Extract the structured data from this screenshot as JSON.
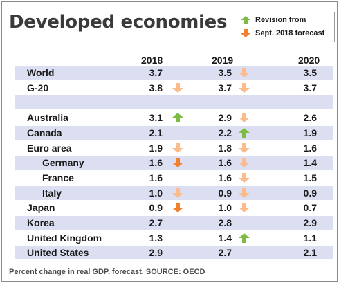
{
  "title": "Developed economies",
  "legend": {
    "up_label": "Revision from",
    "down_label": "Sept. 2018 forecast"
  },
  "colors": {
    "shade": "#dcdff1",
    "arrow_up": "#7dbb42",
    "arrow_down_strong": "#f07f2e",
    "arrow_down_light": "#fbbb8b"
  },
  "chart_data": {
    "type": "table",
    "columns": [
      "2018",
      "2019",
      "2020"
    ],
    "rows": [
      {
        "name": "World",
        "values": [
          "3.7",
          "3.5",
          "3.5"
        ],
        "revisions": [
          null,
          "down-light",
          null
        ],
        "indent": 0,
        "shaded": true
      },
      {
        "name": "G-20",
        "values": [
          "3.8",
          "3.7",
          "3.7"
        ],
        "revisions": [
          "down-light",
          "down-light",
          null
        ],
        "indent": 0,
        "shaded": false
      },
      {
        "name": "",
        "values": [
          "",
          "",
          ""
        ],
        "revisions": [
          null,
          null,
          null
        ],
        "indent": 0,
        "shaded": true
      },
      {
        "name": "Australia",
        "values": [
          "3.1",
          "2.9",
          "2.6"
        ],
        "revisions": [
          "up",
          "down-light",
          null
        ],
        "indent": 0,
        "shaded": false
      },
      {
        "name": "Canada",
        "values": [
          "2.1",
          "2.2",
          "1.9"
        ],
        "revisions": [
          null,
          "up",
          null
        ],
        "indent": 0,
        "shaded": true
      },
      {
        "name": "Euro area",
        "values": [
          "1.9",
          "1.8",
          "1.6"
        ],
        "revisions": [
          "down-light",
          "down-light",
          null
        ],
        "indent": 0,
        "shaded": false
      },
      {
        "name": "Germany",
        "values": [
          "1.6",
          "1.6",
          "1.4"
        ],
        "revisions": [
          "down-strong",
          "down-light",
          null
        ],
        "indent": 1,
        "shaded": true
      },
      {
        "name": "France",
        "values": [
          "1.6",
          "1.6",
          "1.5"
        ],
        "revisions": [
          null,
          "down-light",
          null
        ],
        "indent": 1,
        "shaded": false
      },
      {
        "name": "Italy",
        "values": [
          "1.0",
          "0.9",
          "0.9"
        ],
        "revisions": [
          "down-light",
          "down-light",
          null
        ],
        "indent": 1,
        "shaded": true
      },
      {
        "name": "Japan",
        "values": [
          "0.9",
          "1.0",
          "0.7"
        ],
        "revisions": [
          "down-strong",
          "down-light",
          null
        ],
        "indent": 0,
        "shaded": false
      },
      {
        "name": "Korea",
        "values": [
          "2.7",
          "2.8",
          "2.9"
        ],
        "revisions": [
          null,
          null,
          null
        ],
        "indent": 0,
        "shaded": true
      },
      {
        "name": "United Kingdom",
        "values": [
          "1.3",
          "1.4",
          "1.1"
        ],
        "revisions": [
          null,
          "up",
          null
        ],
        "indent": 0,
        "shaded": false
      },
      {
        "name": "United States",
        "values": [
          "2.9",
          "2.7",
          "2.1"
        ],
        "revisions": [
          null,
          null,
          null
        ],
        "indent": 0,
        "shaded": true
      }
    ]
  },
  "footnote": "Percent change in real GDP, forecast. SOURCE: OECD"
}
